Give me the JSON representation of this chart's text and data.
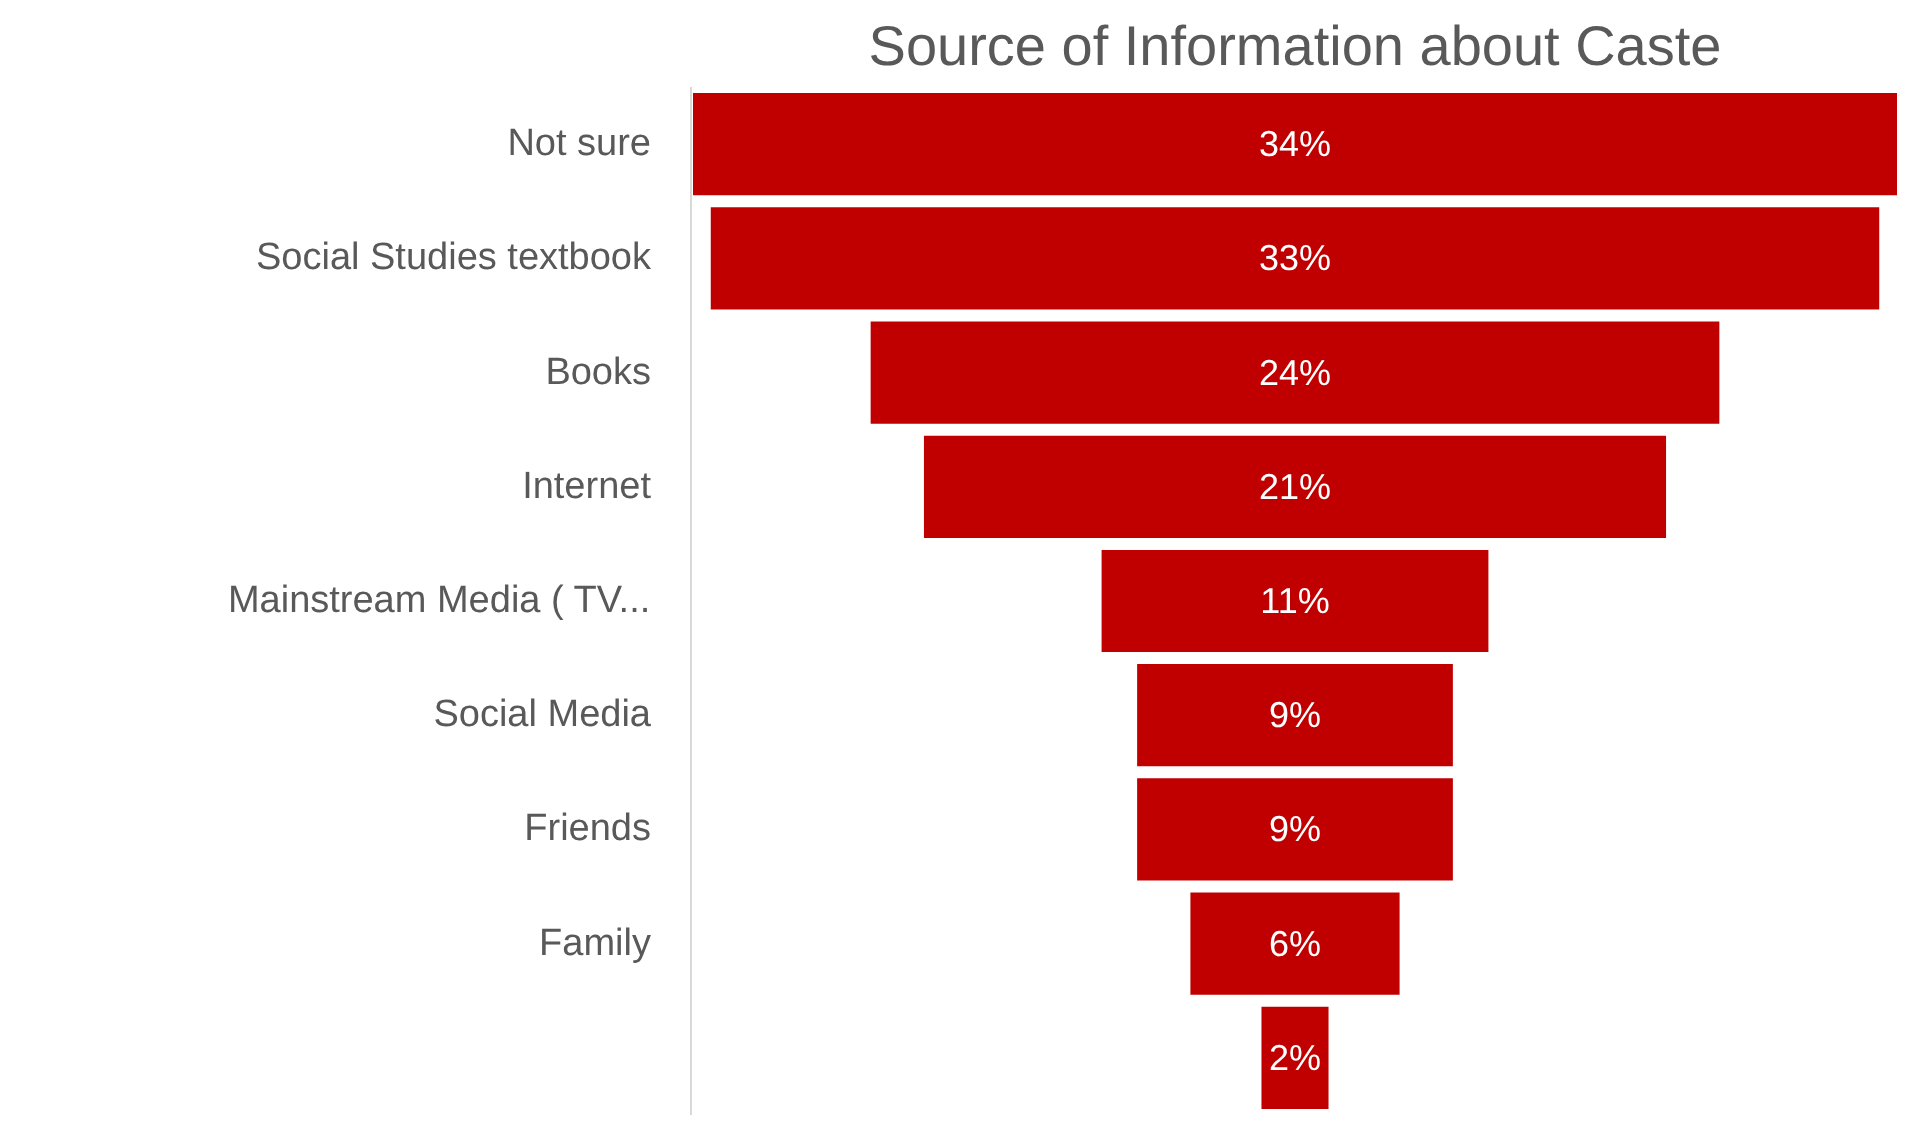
{
  "chart_data": {
    "type": "other",
    "title": "Source of Information about Caste",
    "categories": [
      "Not sure",
      "Social Studies textbook",
      "Books",
      "Internet",
      "Mainstream Media ( TV...",
      "Social Media",
      "Friends",
      "Family",
      null
    ],
    "values": [
      34,
      33,
      24,
      21,
      11,
      9,
      9,
      6,
      2
    ],
    "value_labels": [
      "34%",
      "33%",
      "24%",
      "21%",
      "11%",
      "9%",
      "9%",
      "6%",
      "2%"
    ],
    "color": "#c00000"
  }
}
